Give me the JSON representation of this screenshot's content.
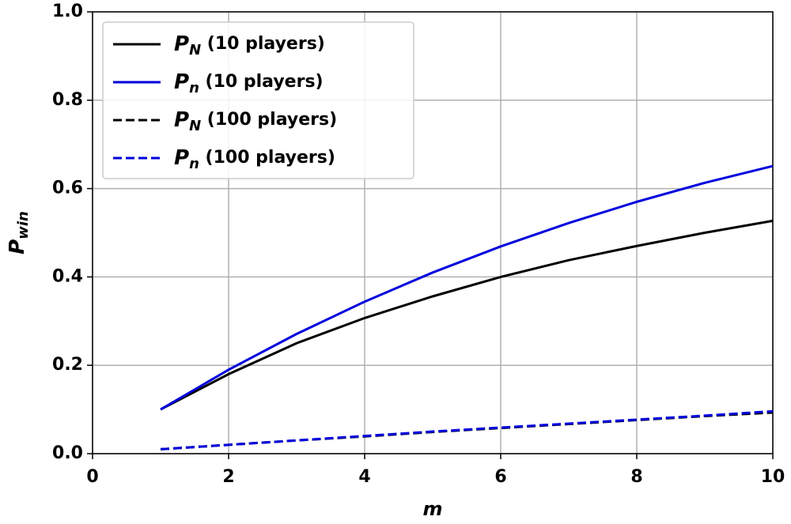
{
  "chart_data": {
    "type": "line",
    "xlabel": "m",
    "ylabel": "Pwin",
    "x": [
      1,
      2,
      3,
      4,
      5,
      6,
      7,
      8,
      9,
      10
    ],
    "series": [
      {
        "name": "PN (10 players)",
        "color": "#000000",
        "linestyle": "solid",
        "values": [
          0.1,
          0.18,
          0.25,
          0.307,
          0.356,
          0.4,
          0.438,
          0.47,
          0.5,
          0.527
        ]
      },
      {
        "name": "Pn (10 players)",
        "color": "#0000dd",
        "linestyle": "solid",
        "values": [
          0.1,
          0.19,
          0.271,
          0.344,
          0.41,
          0.469,
          0.522,
          0.57,
          0.613,
          0.651
        ]
      },
      {
        "name": "PN (100 players)",
        "color": "#000000",
        "linestyle": "dashed",
        "values": [
          0.01,
          0.02,
          0.03,
          0.039,
          0.049,
          0.058,
          0.067,
          0.076,
          0.085,
          0.093
        ]
      },
      {
        "name": "Pn (100 players)",
        "color": "#0000dd",
        "linestyle": "dashed",
        "values": [
          0.01,
          0.02,
          0.03,
          0.04,
          0.05,
          0.059,
          0.068,
          0.077,
          0.086,
          0.096
        ]
      }
    ],
    "xlim": [
      0,
      10
    ],
    "xticks": [
      0,
      2,
      4,
      6,
      8,
      10
    ],
    "ylim": [
      0,
      1
    ],
    "yticks": [
      {
        "value": 0,
        "label": "0.0"
      },
      0.2,
      0.4,
      0.6,
      0.8,
      {
        "value": 1,
        "label": "1.0"
      }
    ],
    "grid": true,
    "legend": "upper left"
  }
}
